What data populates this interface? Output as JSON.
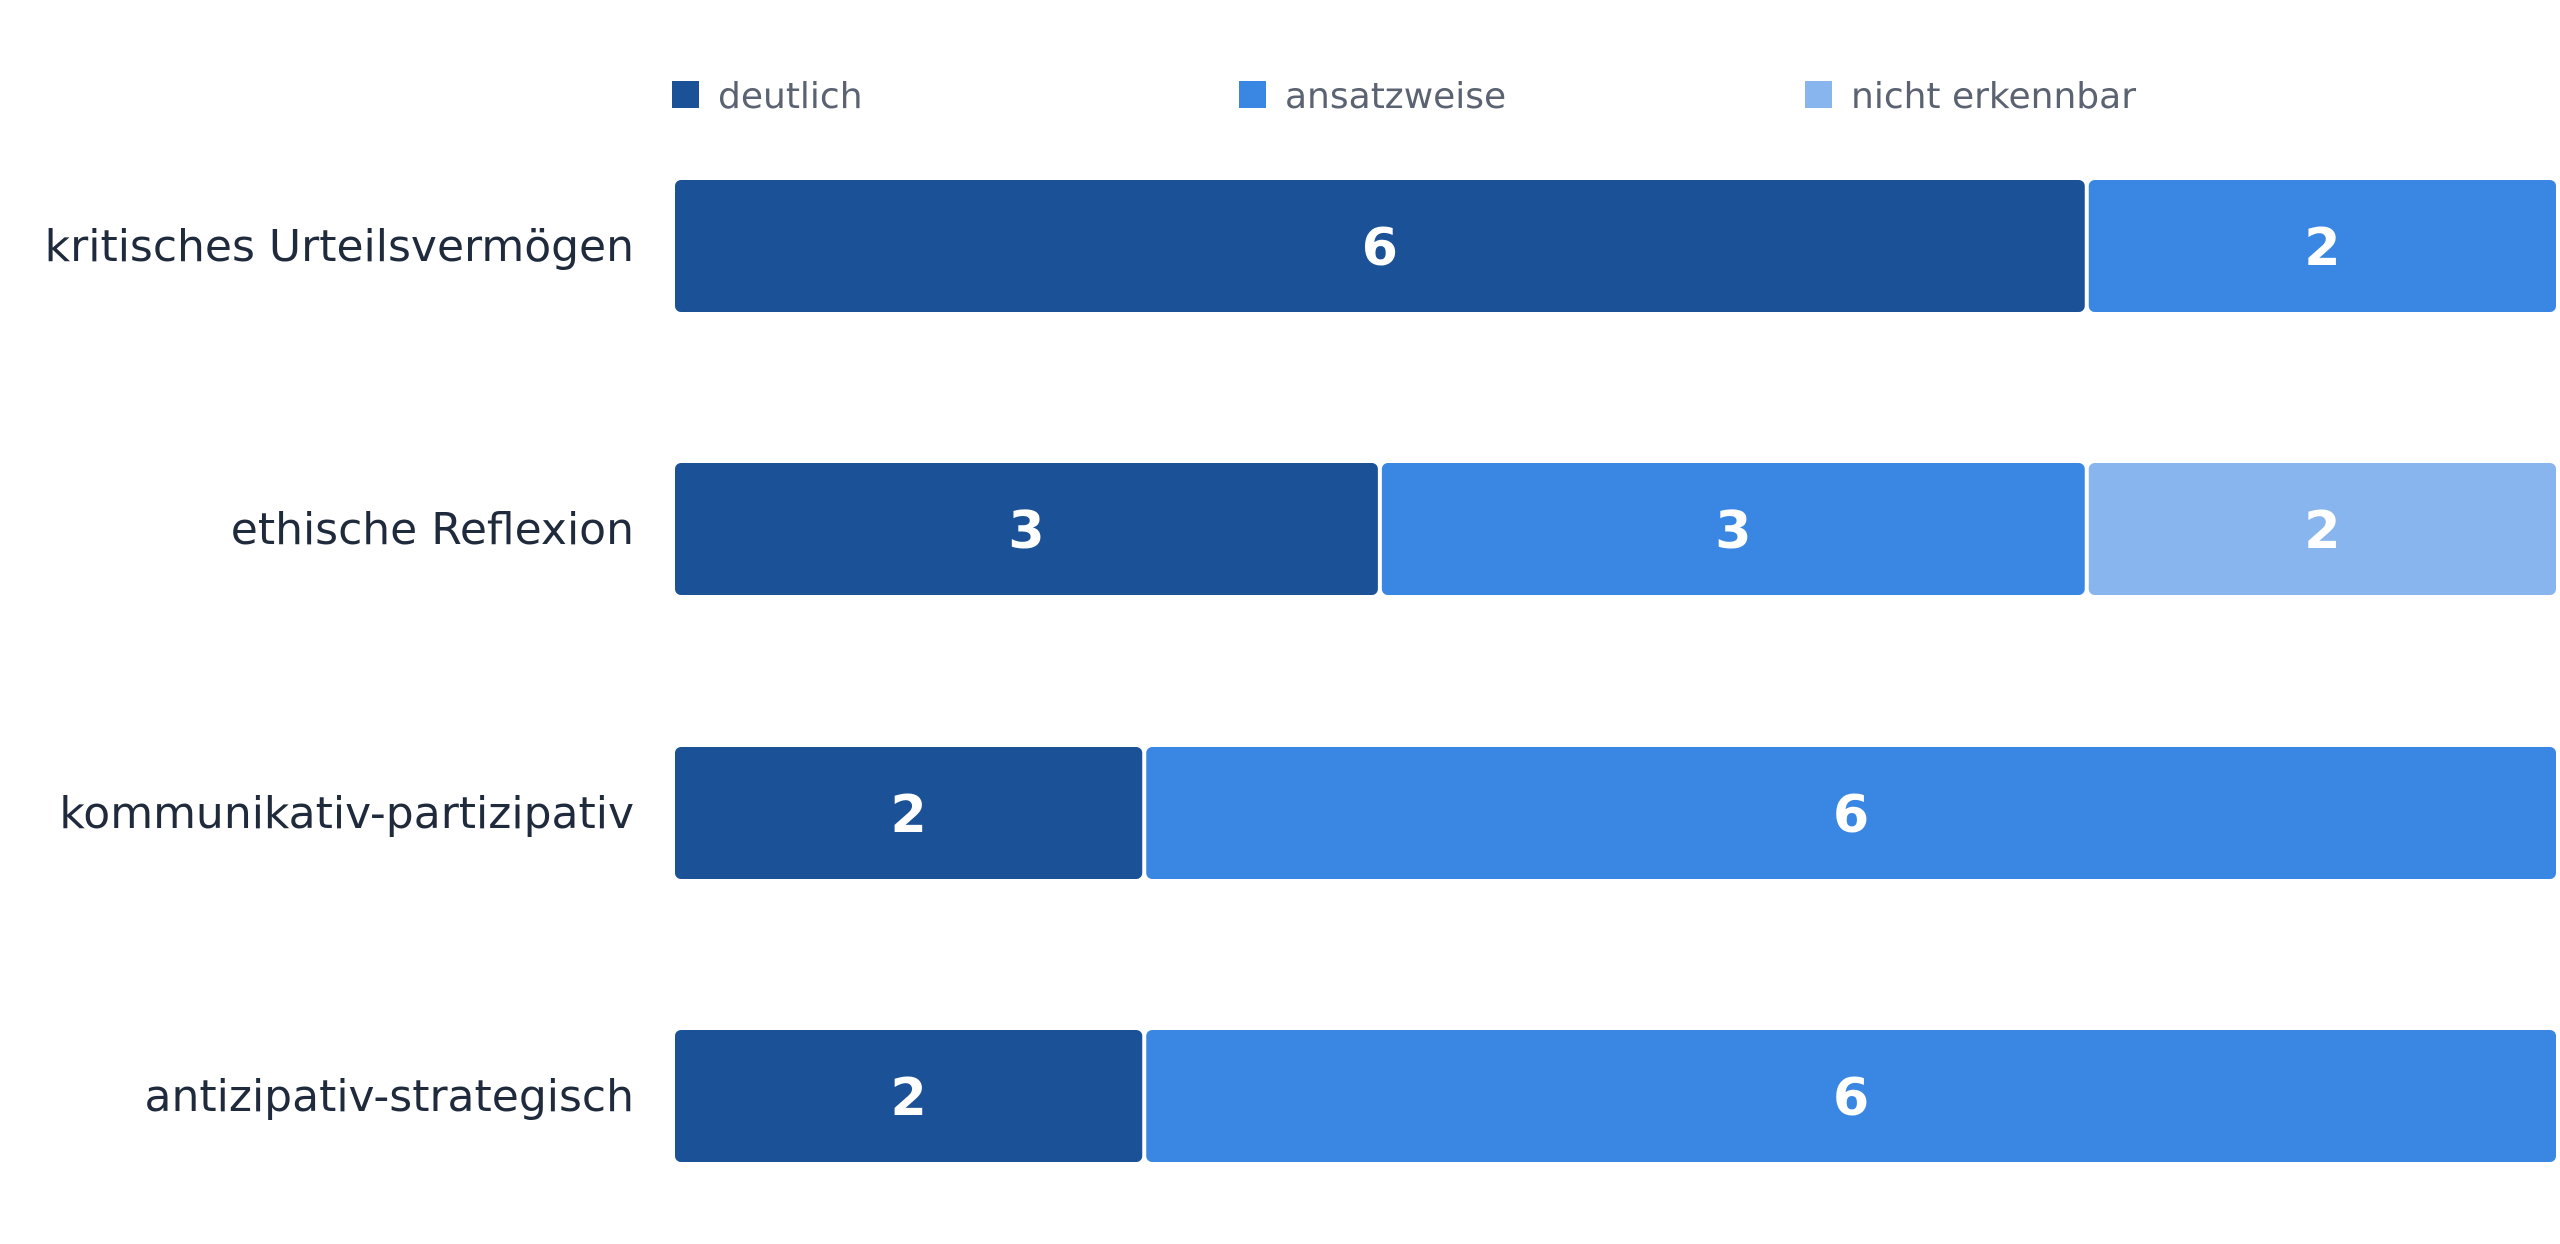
{
  "chart_data": {
    "type": "bar",
    "orientation": "horizontal",
    "stacked": true,
    "normalized": true,
    "grid": false,
    "legend_position": "top",
    "categories": [
      "kritisches Urteilsvermögen",
      "ethische Reflexion",
      "kommunikativ-partizipativ",
      "antizipativ-strategisch"
    ],
    "series": [
      {
        "name": "deutlich",
        "color": "#1b5196",
        "values": [
          6,
          3,
          2,
          2
        ]
      },
      {
        "name": "ansatzweise",
        "color": "#3a87e3",
        "values": [
          2,
          3,
          6,
          6
        ]
      },
      {
        "name": "nicht erkennbar",
        "color": "#88b5ee",
        "values": [
          0,
          2,
          0,
          0
        ]
      }
    ],
    "data_labels": true,
    "title": "",
    "xlabel": "",
    "ylabel": ""
  }
}
